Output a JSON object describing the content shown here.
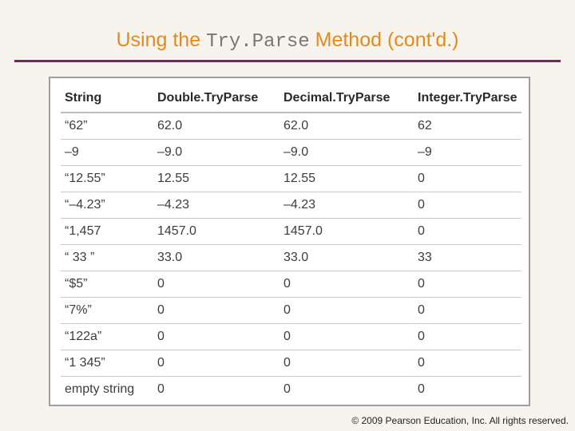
{
  "slide": {
    "title_prefix": "Using the ",
    "title_code": "Try.Parse",
    "title_suffix": " Method (cont'd.)"
  },
  "table": {
    "headers": [
      "String",
      "Double.TryParse",
      "Decimal.TryParse",
      "Integer.TryParse"
    ],
    "rows": [
      [
        "“62”",
        "62.0",
        "62.0",
        "62"
      ],
      [
        "–9",
        "–9.0",
        "–9.0",
        "–9"
      ],
      [
        "“12.55”",
        "12.55",
        "12.55",
        "0"
      ],
      [
        "“–4.23”",
        "–4.23",
        "–4.23",
        "0"
      ],
      [
        "“1,457",
        "1457.0",
        "1457.0",
        "0"
      ],
      [
        "“ 33 ”",
        "33.0",
        "33.0",
        "33"
      ],
      [
        "“$5”",
        "0",
        "0",
        "0"
      ],
      [
        "“7%”",
        "0",
        "0",
        "0"
      ],
      [
        "“122a”",
        "0",
        "0",
        "0"
      ],
      [
        "“1 345”",
        "0",
        "0",
        "0"
      ],
      [
        "empty string",
        "0",
        "0",
        "0"
      ]
    ]
  },
  "footer": {
    "copyright": "© 2009 Pearson Education, Inc.  All rights reserved."
  },
  "colors": {
    "title": "#e38a1c",
    "title_code": "#777777",
    "rule": "#7a1f6e",
    "background": "#f7f4ee"
  }
}
